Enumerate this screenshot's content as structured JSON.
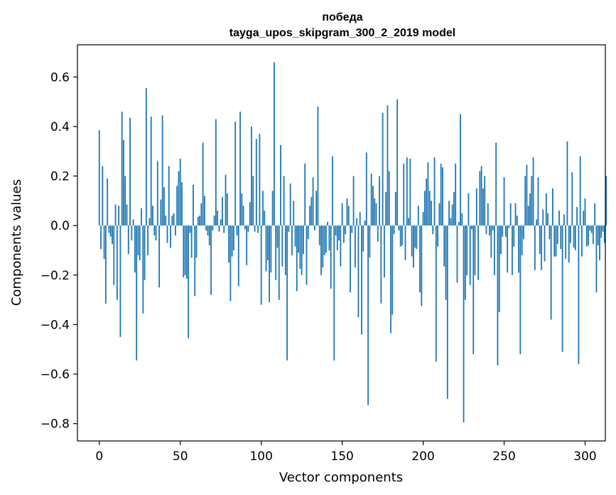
{
  "chart_data": {
    "type": "bar",
    "title": "победа",
    "subtitle": "tayga_upos_skipgram_300_2_2019 model",
    "xlabel": "Vector components",
    "ylabel": "Components values",
    "xlim": [
      -13.5,
      312.5
    ],
    "ylim": [
      -0.87,
      0.73
    ],
    "xticks": [
      0,
      50,
      100,
      150,
      200,
      250,
      300
    ],
    "xtick_labels": [
      "0",
      "50",
      "100",
      "150",
      "200",
      "250",
      "300"
    ],
    "yticks": [
      -0.8,
      -0.6,
      -0.4,
      -0.2,
      0.0,
      0.2,
      0.4,
      0.6
    ],
    "ytick_labels": [
      "−0.8",
      "−0.6",
      "−0.4",
      "−0.2",
      "0.0",
      "0.2",
      "0.4",
      "0.6"
    ],
    "bar_color": "#1f77b4",
    "series": [
      {
        "name": "победа",
        "x_start": 0,
        "values": [
          0.385,
          -0.095,
          0.24,
          -0.135,
          -0.315,
          0.19,
          -0.03,
          -0.045,
          -0.075,
          -0.24,
          0.085,
          -0.3,
          0.08,
          -0.45,
          0.46,
          0.345,
          0.2,
          0.085,
          -0.115,
          0.435,
          -0.06,
          0.025,
          -0.19,
          -0.545,
          -0.12,
          -0.14,
          0.07,
          -0.355,
          -0.22,
          0.555,
          -0.12,
          0.03,
          0.44,
          0.08,
          -0.04,
          -0.06,
          0.26,
          -0.25,
          0.105,
          0.445,
          0.155,
          0.04,
          -0.07,
          0.24,
          -0.09,
          0.04,
          0.05,
          -0.04,
          0.16,
          0.22,
          0.27,
          0.175,
          -0.21,
          -0.2,
          -0.215,
          -0.455,
          -0.03,
          -0.13,
          0.165,
          -0.285,
          -0.13,
          0.035,
          0.04,
          0.09,
          0.335,
          0.12,
          -0.02,
          -0.04,
          -0.08,
          -0.28,
          -0.02,
          0.04,
          0.43,
          0.06,
          -0.025,
          0.025,
          0.115,
          -0.03,
          0.205,
          0.13,
          -0.15,
          -0.305,
          -0.125,
          -0.1,
          0.42,
          -0.04,
          -0.245,
          0.46,
          0.13,
          0.08,
          -0.015,
          -0.16,
          -0.025,
          0.095,
          0.4,
          0.2,
          -0.025,
          0.35,
          -0.03,
          0.37,
          -0.32,
          0.14,
          0.06,
          -0.185,
          -0.14,
          -0.31,
          -0.19,
          0.14,
          0.66,
          -0.22,
          -0.09,
          -0.3,
          0.325,
          -0.165,
          0.2,
          -0.2,
          -0.545,
          -0.025,
          0.17,
          -0.12,
          0.1,
          -0.085,
          -0.265,
          -0.11,
          -0.175,
          -0.2,
          -0.115,
          0.25,
          -0.24,
          -0.055,
          0.08,
          0.115,
          0.195,
          -0.02,
          0.14,
          0.48,
          -0.08,
          -0.2,
          -0.17,
          -0.12,
          -0.11,
          0.015,
          -0.1,
          -0.255,
          0.28,
          -0.545,
          -0.04,
          -0.1,
          -0.06,
          -0.165,
          0.09,
          -0.07,
          -0.035,
          0.11,
          0.08,
          -0.27,
          -0.03,
          0.2,
          -0.17,
          0.03,
          -0.37,
          0.055,
          -0.44,
          -0.105,
          0.02,
          0.295,
          -0.725,
          -0.13,
          0.21,
          0.16,
          0.11,
          0.09,
          -0.065,
          0.2,
          -0.315,
          0.455,
          -0.21,
          0.135,
          0.485,
          0.22,
          -0.435,
          -0.36,
          -0.035,
          0.135,
          0.51,
          -0.02,
          -0.085,
          -0.08,
          0.25,
          -0.14,
          0.275,
          0.03,
          0.27,
          -0.125,
          -0.17,
          -0.09,
          -0.095,
          0.08,
          -0.27,
          -0.325,
          0.055,
          0.14,
          0.19,
          0.255,
          0.14,
          0.1,
          -0.035,
          0.275,
          -0.55,
          -0.085,
          0.09,
          0.25,
          0.235,
          -0.165,
          -0.3,
          -0.7,
          0.1,
          0.03,
          0.085,
          0.135,
          0.25,
          -0.23,
          0.015,
          0.45,
          0.05,
          -0.795,
          -0.3,
          -0.2,
          0.13,
          -0.24,
          -0.015,
          -0.52,
          -0.2,
          0.15,
          -0.22,
          0.22,
          0.24,
          0.15,
          0.2,
          -0.035,
          0.09,
          -0.04,
          -0.13,
          -0.02,
          -0.2,
          0.335,
          -0.565,
          -0.35,
          -0.115,
          -0.045,
          0.195,
          -0.045,
          -0.19,
          -0.01,
          0.09,
          -0.2,
          -0.085,
          0.09,
          0.04,
          -0.19,
          -0.52,
          -0.12,
          -0.055,
          0.2,
          0.245,
          0.08,
          0.13,
          0.2,
          0.275,
          -0.18,
          0.025,
          0.195,
          -0.115,
          -0.18,
          0.065,
          -0.145,
          0.13,
          0.05,
          -0.055,
          -0.38,
          0.15,
          -0.125,
          -0.125,
          -0.075,
          0.06,
          -0.095,
          -0.51,
          0.045,
          -0.135,
          0.34,
          -0.15,
          -0.07,
          0.215,
          -0.09,
          -0.1,
          0.075,
          -0.56,
          0.28,
          -0.125,
          0.06,
          0.11,
          -0.085,
          -0.08,
          -0.02,
          -0.03,
          -0.075,
          0.09,
          -0.27,
          -0.08,
          -0.14,
          -0.05,
          -0.025,
          -0.07,
          0.2
        ]
      }
    ]
  }
}
